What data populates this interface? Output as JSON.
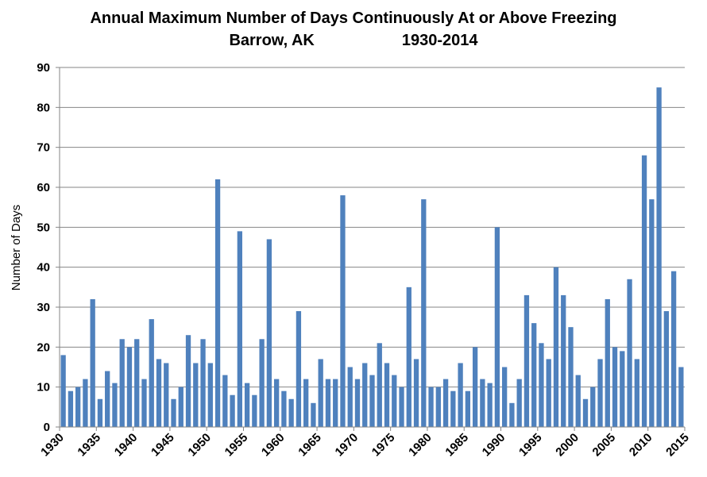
{
  "chart_data": {
    "type": "bar",
    "title": "Annual Maximum Number of Days Continuously At or Above Freezing",
    "subtitle_location": "Barrow, AK",
    "subtitle_period": "1930-2014",
    "xlabel": "",
    "ylabel": "Number of Days",
    "ylim": [
      0,
      90
    ],
    "yticks": [
      0,
      10,
      20,
      30,
      40,
      50,
      60,
      70,
      80,
      90
    ],
    "xlim": [
      1930,
      2015
    ],
    "xticks": [
      1930,
      1935,
      1940,
      1945,
      1950,
      1955,
      1960,
      1965,
      1970,
      1975,
      1980,
      1985,
      1990,
      1995,
      2000,
      2005,
      2010,
      2015
    ],
    "grid": true,
    "legend": "none",
    "bar_color": "#4F81BD",
    "series": [
      {
        "x": [
          1930,
          1931,
          1932,
          1933,
          1934,
          1935,
          1936,
          1937,
          1938,
          1939,
          1940,
          1941,
          1942,
          1943,
          1944,
          1945,
          1946,
          1947,
          1948,
          1949,
          1950,
          1951,
          1952,
          1953,
          1954,
          1955,
          1956,
          1957,
          1958,
          1959,
          1960,
          1961,
          1962,
          1963,
          1964,
          1965,
          1966,
          1967,
          1968,
          1969,
          1970,
          1971,
          1972,
          1973,
          1974,
          1975,
          1976,
          1977,
          1978,
          1979,
          1980,
          1981,
          1982,
          1983,
          1984,
          1985,
          1986,
          1987,
          1988,
          1989,
          1990,
          1991,
          1992,
          1993,
          1994,
          1995,
          1996,
          1997,
          1998,
          1999,
          2000,
          2001,
          2002,
          2003,
          2004,
          2005,
          2006,
          2007,
          2008,
          2009,
          2010,
          2011,
          2012,
          2013,
          2014
        ],
        "values": [
          18,
          9,
          10,
          12,
          32,
          7,
          14,
          11,
          22,
          20,
          22,
          12,
          27,
          17,
          16,
          7,
          10,
          23,
          16,
          22,
          16,
          62,
          13,
          8,
          49,
          11,
          8,
          22,
          47,
          12,
          9,
          7,
          29,
          12,
          6,
          17,
          12,
          12,
          58,
          15,
          12,
          16,
          13,
          21,
          16,
          13,
          10,
          35,
          17,
          57,
          10,
          10,
          12,
          9,
          16,
          9,
          20,
          12,
          11,
          50,
          15,
          6,
          12,
          33,
          26,
          21,
          17,
          40,
          33,
          25,
          13,
          7,
          10,
          17,
          32,
          20,
          19,
          37,
          17,
          68,
          57,
          85,
          29,
          39,
          15
        ]
      }
    ]
  }
}
